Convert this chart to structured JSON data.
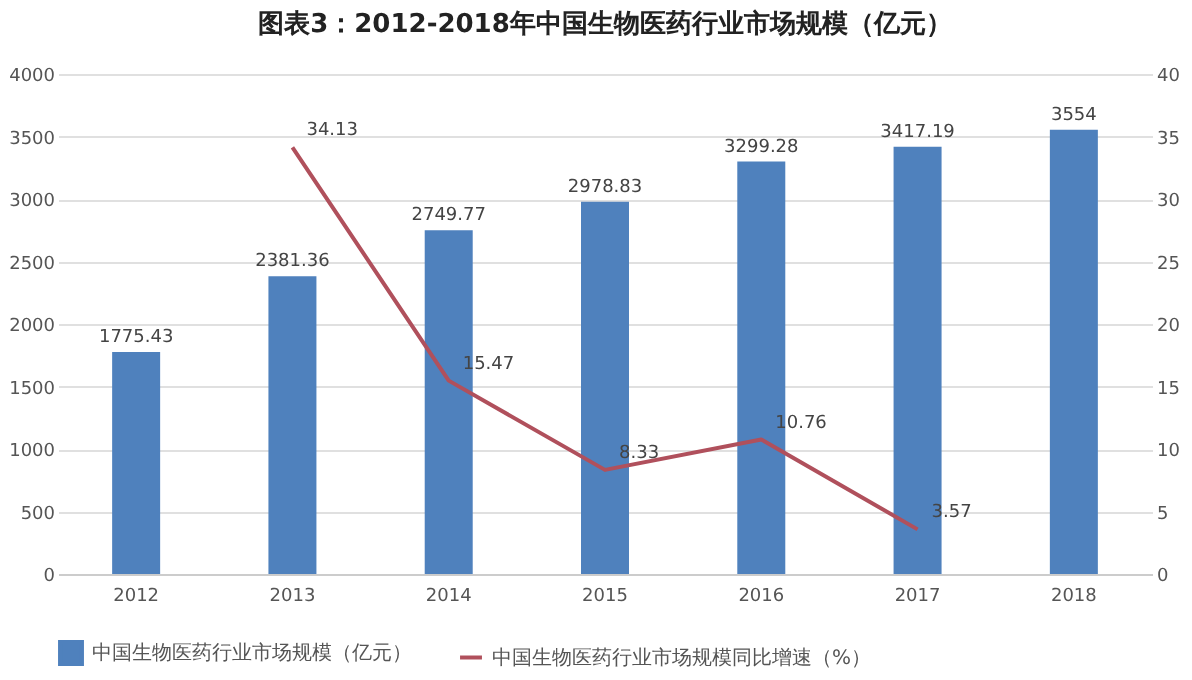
{
  "chart_data": {
    "type": "bar",
    "title": "图表3：2012-2018年中国生物医药行业市场规模（亿元）",
    "categories": [
      "2012",
      "2013",
      "2014",
      "2015",
      "2016",
      "2017",
      "2018"
    ],
    "series": [
      {
        "name": "中国生物医药行业市场规模（亿元）",
        "color": "#4f81bd",
        "values": [
          1775.43,
          2381.36,
          2749.77,
          2978.83,
          3299.28,
          3417.19,
          3554
        ]
      },
      {
        "name": "中国生物医药行业市场规模同比增速（%）",
        "type": "line",
        "axis": "y2",
        "color": "#b0505c",
        "values": [
          null,
          34.13,
          15.47,
          8.33,
          10.76,
          3.57,
          null
        ]
      }
    ],
    "ylim": [
      0,
      4000
    ],
    "yticks": [
      0,
      500,
      1000,
      1500,
      2000,
      2500,
      3000,
      3500,
      4000
    ],
    "y2lim": [
      0,
      40
    ],
    "y2ticks": [
      0,
      5,
      10,
      15,
      20,
      25,
      30,
      35,
      40
    ],
    "grid": "y",
    "legend": "bottom",
    "data_labels": true,
    "marker": "none"
  }
}
